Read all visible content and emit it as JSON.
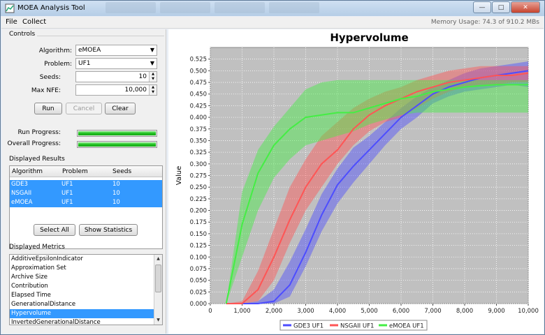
{
  "window": {
    "title": "MOEA Analysis Tool",
    "memory_usage": "Memory Usage: 74.3 of 910.2 MBs"
  },
  "menu": {
    "file": "File",
    "collect": "Collect"
  },
  "controls": {
    "title": "Controls",
    "algorithm_label": "Algorithm:",
    "algorithm_value": "eMOEA",
    "problem_label": "Problem:",
    "problem_value": "UF1",
    "seeds_label": "Seeds:",
    "seeds_value": "10",
    "max_nfe_label": "Max NFE:",
    "max_nfe_value": "10,000",
    "run_button": "Run",
    "cancel_button": "Cancel",
    "clear_button": "Clear",
    "run_progress_label": "Run Progress:",
    "run_progress": 1.0,
    "overall_progress_label": "Overall Progress:",
    "overall_progress": 1.0
  },
  "results": {
    "title": "Displayed Results",
    "columns": [
      "Algorithm",
      "Problem",
      "Seeds"
    ],
    "rows": [
      {
        "algorithm": "GDE3",
        "problem": "UF1",
        "seeds": "10"
      },
      {
        "algorithm": "NSGAII",
        "problem": "UF1",
        "seeds": "10"
      },
      {
        "algorithm": "eMOEA",
        "problem": "UF1",
        "seeds": "10"
      }
    ],
    "select_all_button": "Select All",
    "show_statistics_button": "Show Statistics"
  },
  "metrics": {
    "title": "Displayed Metrics",
    "items": [
      "AdditiveEpsilonIndicator",
      "Approximation Set",
      "Archive Size",
      "Contribution",
      "Elapsed Time",
      "GenerationalDistance",
      "Hypervolume",
      "InvertedGenerationalDistance"
    ],
    "selected": "Hypervolume"
  },
  "chart_data": {
    "type": "line",
    "title": "Hypervolume",
    "xlabel": "",
    "ylabel": "Value",
    "xlim": [
      0,
      10000
    ],
    "ylim": [
      0,
      0.55
    ],
    "x_ticks": [
      "0",
      "1,000",
      "2,000",
      "3,000",
      "4,000",
      "5,000",
      "6,000",
      "7,000",
      "8,000",
      "9,000",
      "10,000"
    ],
    "y_ticks": [
      "0.000",
      "0.025",
      "0.050",
      "0.075",
      "0.100",
      "0.125",
      "0.150",
      "0.175",
      "0.200",
      "0.225",
      "0.250",
      "0.275",
      "0.300",
      "0.325",
      "0.350",
      "0.375",
      "0.400",
      "0.425",
      "0.450",
      "0.475",
      "0.500",
      "0.525"
    ],
    "grid": true,
    "legend_placement": "bottom",
    "plot_background": "#c0c0c0",
    "series": [
      {
        "name": "GDE3 UF1",
        "color": "#4d4dff",
        "x": [
          500,
          1000,
          1500,
          2000,
          2500,
          3000,
          3500,
          4000,
          4500,
          5000,
          5500,
          6000,
          6500,
          7000,
          7500,
          8000,
          8500,
          9000,
          9500,
          10000
        ],
        "mean": [
          0,
          0,
          0,
          0.005,
          0.04,
          0.11,
          0.19,
          0.255,
          0.295,
          0.33,
          0.365,
          0.4,
          0.425,
          0.45,
          0.465,
          0.475,
          0.485,
          0.49,
          0.495,
          0.5
        ],
        "lower": [
          0,
          0,
          0,
          0,
          0.015,
          0.08,
          0.155,
          0.215,
          0.26,
          0.3,
          0.34,
          0.375,
          0.4,
          0.43,
          0.445,
          0.455,
          0.46,
          0.465,
          0.47,
          0.465
        ],
        "upper": [
          0,
          0,
          0.005,
          0.03,
          0.09,
          0.16,
          0.235,
          0.29,
          0.335,
          0.36,
          0.39,
          0.42,
          0.445,
          0.465,
          0.48,
          0.495,
          0.505,
          0.51,
          0.515,
          0.52
        ]
      },
      {
        "name": "NSGAII UF1",
        "color": "#ff5555",
        "x": [
          500,
          1000,
          1500,
          2000,
          2500,
          3000,
          3500,
          4000,
          4500,
          5000,
          5500,
          6000,
          6500,
          7000,
          7500,
          8000,
          8500,
          9000,
          9500,
          10000
        ],
        "mean": [
          0,
          0,
          0.03,
          0.1,
          0.18,
          0.25,
          0.3,
          0.33,
          0.375,
          0.405,
          0.425,
          0.44,
          0.455,
          0.465,
          0.475,
          0.48,
          0.485,
          0.49,
          0.49,
          0.495
        ],
        "lower": [
          0,
          0,
          0.005,
          0.05,
          0.13,
          0.2,
          0.25,
          0.3,
          0.34,
          0.37,
          0.39,
          0.4,
          0.42,
          0.44,
          0.455,
          0.465,
          0.47,
          0.47,
          0.475,
          0.475
        ],
        "upper": [
          0,
          0.005,
          0.07,
          0.16,
          0.25,
          0.31,
          0.36,
          0.39,
          0.42,
          0.44,
          0.455,
          0.465,
          0.48,
          0.49,
          0.5,
          0.505,
          0.51,
          0.51,
          0.51,
          0.51
        ]
      },
      {
        "name": "eMOEA UF1",
        "color": "#44ee44",
        "x": [
          500,
          1000,
          1500,
          2000,
          2500,
          3000,
          3500,
          4000,
          4500,
          5000,
          5500,
          6000,
          6500,
          7000,
          7500,
          8000,
          8500,
          9000,
          9500,
          10000
        ],
        "mean": [
          0,
          0.17,
          0.28,
          0.34,
          0.375,
          0.4,
          0.405,
          0.41,
          0.41,
          0.42,
          0.43,
          0.44,
          0.445,
          0.455,
          0.46,
          0.465,
          0.468,
          0.47,
          0.47,
          0.47
        ],
        "lower": [
          0,
          0.1,
          0.2,
          0.27,
          0.31,
          0.34,
          0.35,
          0.36,
          0.37,
          0.385,
          0.395,
          0.405,
          0.41,
          0.41,
          0.41,
          0.41,
          0.41,
          0.41,
          0.41,
          0.41
        ],
        "upper": [
          0,
          0.24,
          0.33,
          0.38,
          0.42,
          0.46,
          0.475,
          0.48,
          0.48,
          0.48,
          0.48,
          0.48,
          0.48,
          0.48,
          0.48,
          0.48,
          0.48,
          0.48,
          0.48,
          0.48
        ]
      }
    ]
  }
}
